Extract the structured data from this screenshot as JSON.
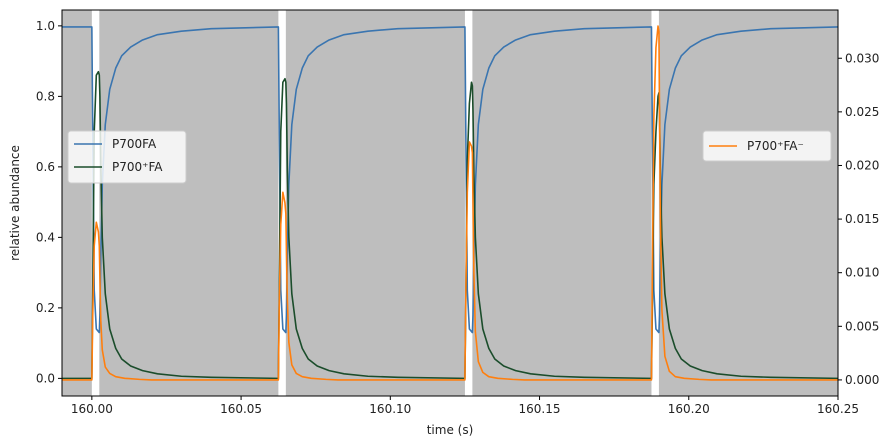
{
  "chart_data": {
    "type": "line",
    "xlabel": "time (s)",
    "ylabel_left": "relative abundance",
    "ylabel_right": "",
    "xlim": [
      159.99,
      160.25
    ],
    "ylim_left": [
      -0.05,
      1.045
    ],
    "ylim_right": [
      -0.0015,
      0.0345
    ],
    "x_ticks": [
      "160.00",
      "160.05",
      "160.10",
      "160.15",
      "160.20",
      "160.25"
    ],
    "y_left_ticks": [
      "0.0",
      "0.2",
      "0.4",
      "0.6",
      "0.8",
      "1.0"
    ],
    "y_right_ticks": [
      "0.000",
      "0.005",
      "0.010",
      "0.015",
      "0.020",
      "0.025",
      "0.030"
    ],
    "grid": false,
    "background_shading": {
      "color": "#bebebe",
      "dark_intervals": [
        [
          159.99,
          160.0
        ],
        [
          160.0025,
          160.0625
        ],
        [
          160.065,
          160.125
        ],
        [
          160.1275,
          160.1875
        ],
        [
          160.19,
          160.25
        ]
      ],
      "light_flashes": [
        [
          160.0,
          160.0025
        ],
        [
          160.0625,
          160.065
        ],
        [
          160.125,
          160.1275
        ],
        [
          160.1875,
          160.19
        ]
      ]
    },
    "legend_left": {
      "placement": "center-left",
      "entries": [
        "P700FA",
        "P700⁺FA"
      ]
    },
    "legend_right": {
      "placement": "center-right",
      "entries": [
        "P700⁺FA⁻"
      ]
    },
    "series": [
      {
        "name": "P700FA",
        "axis": "left",
        "color": "#3a75b0",
        "x": [
          159.99,
          160.0,
          160.0003,
          160.0008,
          160.0015,
          160.0025,
          160.0027,
          160.003,
          160.0035,
          160.0045,
          160.006,
          160.008,
          160.01,
          160.013,
          160.017,
          160.022,
          160.03,
          160.04,
          160.0625,
          160.0628,
          160.0633,
          160.064,
          160.065,
          160.0652,
          160.0655,
          160.066,
          160.067,
          160.0685,
          160.0705,
          160.0725,
          160.0755,
          160.0795,
          160.0845,
          160.0925,
          160.1025,
          160.125,
          160.1253,
          160.1258,
          160.1265,
          160.1275,
          160.1277,
          160.128,
          160.1285,
          160.1295,
          160.131,
          160.133,
          160.135,
          160.138,
          160.142,
          160.147,
          160.155,
          160.165,
          160.1875,
          160.1878,
          160.1883,
          160.189,
          160.19,
          160.1902,
          160.1905,
          160.191,
          160.192,
          160.1935,
          160.1955,
          160.1975,
          160.2005,
          160.2045,
          160.2095,
          160.2175,
          160.2275,
          160.25
        ],
        "values": [
          0.997,
          0.997,
          0.7,
          0.25,
          0.14,
          0.13,
          0.18,
          0.35,
          0.55,
          0.72,
          0.82,
          0.88,
          0.915,
          0.94,
          0.96,
          0.975,
          0.985,
          0.992,
          0.997,
          0.7,
          0.25,
          0.14,
          0.13,
          0.18,
          0.35,
          0.55,
          0.72,
          0.82,
          0.88,
          0.915,
          0.94,
          0.96,
          0.975,
          0.985,
          0.992,
          0.997,
          0.7,
          0.25,
          0.14,
          0.13,
          0.18,
          0.35,
          0.55,
          0.72,
          0.82,
          0.88,
          0.915,
          0.94,
          0.96,
          0.975,
          0.985,
          0.992,
          0.997,
          0.7,
          0.25,
          0.14,
          0.13,
          0.18,
          0.35,
          0.55,
          0.72,
          0.82,
          0.88,
          0.915,
          0.94,
          0.96,
          0.975,
          0.985,
          0.992,
          0.997
        ]
      },
      {
        "name": "P700⁺FA",
        "axis": "left",
        "color": "#1b4d2b",
        "x": [
          159.99,
          160.0,
          160.0003,
          160.0008,
          160.0015,
          160.0022,
          160.0025,
          160.0027,
          160.003,
          160.0035,
          160.0045,
          160.006,
          160.008,
          160.01,
          160.013,
          160.017,
          160.022,
          160.03,
          160.04,
          160.0625,
          160.0628,
          160.0633,
          160.064,
          160.0647,
          160.065,
          160.0652,
          160.0655,
          160.066,
          160.067,
          160.0685,
          160.0705,
          160.0725,
          160.0755,
          160.0795,
          160.0845,
          160.0925,
          160.1025,
          160.125,
          160.1253,
          160.1258,
          160.1265,
          160.1272,
          160.1275,
          160.1277,
          160.128,
          160.1285,
          160.1295,
          160.131,
          160.133,
          160.135,
          160.138,
          160.142,
          160.147,
          160.155,
          160.165,
          160.1875,
          160.1878,
          160.1883,
          160.189,
          160.1897,
          160.19,
          160.1902,
          160.1905,
          160.191,
          160.192,
          160.1935,
          160.1955,
          160.1975,
          160.2005,
          160.2045,
          160.2095,
          160.2175,
          160.2275,
          160.25
        ],
        "values": [
          0.0,
          0.0,
          0.25,
          0.7,
          0.86,
          0.87,
          0.86,
          0.8,
          0.6,
          0.4,
          0.24,
          0.14,
          0.085,
          0.055,
          0.035,
          0.022,
          0.013,
          0.006,
          0.003,
          0.0,
          0.25,
          0.7,
          0.84,
          0.85,
          0.84,
          0.78,
          0.59,
          0.4,
          0.24,
          0.14,
          0.085,
          0.055,
          0.035,
          0.022,
          0.013,
          0.006,
          0.003,
          0.0,
          0.22,
          0.62,
          0.78,
          0.84,
          0.83,
          0.76,
          0.58,
          0.4,
          0.24,
          0.14,
          0.085,
          0.055,
          0.035,
          0.022,
          0.013,
          0.006,
          0.003,
          0.0,
          0.2,
          0.55,
          0.7,
          0.8,
          0.81,
          0.75,
          0.57,
          0.4,
          0.24,
          0.14,
          0.085,
          0.055,
          0.035,
          0.022,
          0.013,
          0.006,
          0.003,
          0.0
        ]
      },
      {
        "name": "P700⁺FA⁻",
        "axis": "right",
        "color": "#ff7f0e",
        "x": [
          159.99,
          160.0,
          160.0003,
          160.0008,
          160.0015,
          160.0022,
          160.0025,
          160.0027,
          160.003,
          160.0035,
          160.0045,
          160.006,
          160.008,
          160.011,
          160.016,
          160.02,
          160.0625,
          160.0628,
          160.0633,
          160.064,
          160.0647,
          160.065,
          160.0652,
          160.0655,
          160.066,
          160.067,
          160.0685,
          160.0705,
          160.0735,
          160.0785,
          160.0825,
          160.125,
          160.1253,
          160.1258,
          160.1265,
          160.1272,
          160.1275,
          160.1277,
          160.128,
          160.1285,
          160.1295,
          160.131,
          160.133,
          160.136,
          160.141,
          160.145,
          160.1875,
          160.1878,
          160.1883,
          160.189,
          160.1897,
          160.19,
          160.1902,
          160.1905,
          160.191,
          160.192,
          160.1935,
          160.1955,
          160.1985,
          160.2035,
          160.2075,
          160.25
        ],
        "values": [
          0.0,
          0.0,
          0.006,
          0.0125,
          0.0147,
          0.0138,
          0.0125,
          0.0095,
          0.0055,
          0.0028,
          0.0012,
          0.0006,
          0.0003,
          0.00015,
          5e-05,
          0.0,
          0.0,
          0.007,
          0.0145,
          0.0175,
          0.0165,
          0.0155,
          0.012,
          0.0075,
          0.0035,
          0.0014,
          0.0006,
          0.0003,
          0.00015,
          5e-05,
          0.0,
          0.0,
          0.008,
          0.0175,
          0.0222,
          0.0218,
          0.0212,
          0.0165,
          0.01,
          0.0045,
          0.0017,
          0.0007,
          0.0003,
          0.00015,
          5e-05,
          0.0,
          0.0,
          0.01,
          0.0245,
          0.031,
          0.033,
          0.0325,
          0.025,
          0.015,
          0.0065,
          0.0022,
          0.0008,
          0.0003,
          0.00015,
          5e-05,
          0.0,
          0.0
        ]
      }
    ]
  }
}
